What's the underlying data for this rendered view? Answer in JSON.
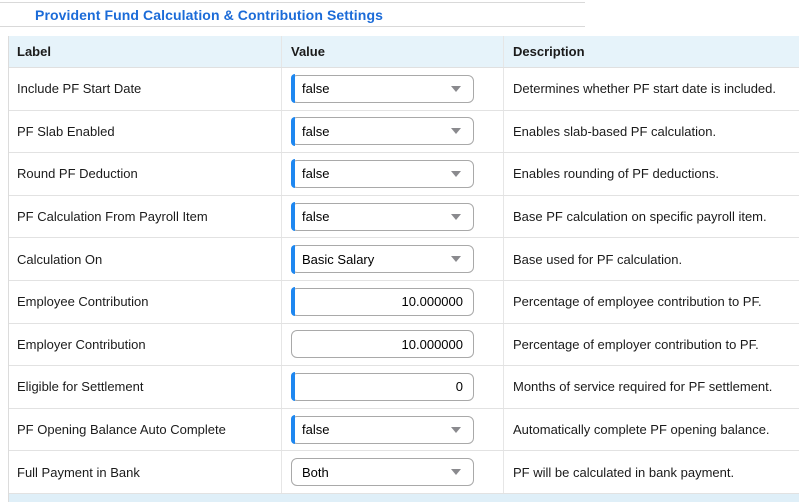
{
  "page": {
    "title": "Provident Fund Calculation & Contribution Settings"
  },
  "colors": {
    "title_blue": "#1b6bd8",
    "accent_blue": "#1e87f0",
    "header_background": "#e6f3fa",
    "footer_background": "#dfeff8"
  },
  "table": {
    "headers": {
      "label": "Label",
      "value": "Value",
      "description": "Description"
    },
    "rows": [
      {
        "label": "Include PF Start Date",
        "value": "false",
        "type": "select",
        "accent": true,
        "description": "Determines whether PF start date is included."
      },
      {
        "label": "PF Slab Enabled",
        "value": "false",
        "type": "select",
        "accent": true,
        "description": "Enables slab-based PF calculation."
      },
      {
        "label": "Round PF Deduction",
        "value": "false",
        "type": "select",
        "accent": true,
        "description": "Enables rounding of PF deductions."
      },
      {
        "label": "PF Calculation From Payroll Item",
        "value": "false",
        "type": "select",
        "accent": true,
        "description": "Base PF calculation on specific payroll item."
      },
      {
        "label": "Calculation On",
        "value": "Basic Salary",
        "type": "select",
        "accent": true,
        "description": "Base used for PF calculation."
      },
      {
        "label": "Employee Contribution",
        "value": "10.000000",
        "type": "number",
        "accent": true,
        "description": "Percentage of employee contribution to PF."
      },
      {
        "label": "Employer Contribution",
        "value": "10.000000",
        "type": "number",
        "accent": false,
        "description": "Percentage of employer contribution to PF."
      },
      {
        "label": "Eligible for Settlement",
        "value": "0",
        "type": "number",
        "accent": true,
        "description": "Months of service required for PF settlement."
      },
      {
        "label": "PF Opening Balance Auto Complete",
        "value": "false",
        "type": "select",
        "accent": true,
        "description": "Automatically complete PF opening balance."
      },
      {
        "label": "Full Payment in Bank",
        "value": "Both",
        "type": "select",
        "accent": false,
        "description": "PF will be calculated in bank payment."
      }
    ]
  }
}
